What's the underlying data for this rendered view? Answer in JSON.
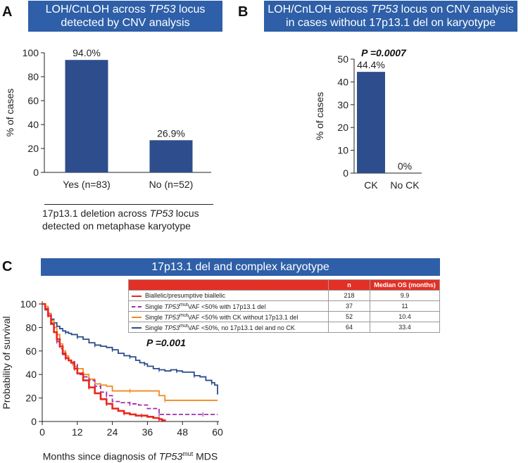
{
  "panel_a": {
    "letter": "A",
    "title_line1_pre": "LOH/CnLOH across ",
    "title_line1_italic": "TP53",
    "title_line1_post": " locus",
    "title_line2": "detected by CNV analysis",
    "caption_line1_pre": "17p13.1 deletion across ",
    "caption_line1_italic": "TP53",
    "caption_line1_post": " locus",
    "caption_line2": "detected on metaphase karyotype"
  },
  "panel_b": {
    "letter": "B",
    "title_line1_pre": "LOH/CnLOH across ",
    "title_line1_italic": "TP53",
    "title_line1_post": " locus on CNV analysis",
    "title_line2": "in cases without 17p13.1 del on karyotype",
    "p_value": "P =0.0007"
  },
  "panel_c": {
    "letter": "C",
    "title": "17p13.1 del and complex karyotype",
    "p_value": "P =0.001",
    "legend_header": {
      "n": "n",
      "median": "Median OS (months)"
    },
    "xlabel_pre": "Months since diagnosis of ",
    "xlabel_italic": "TP53",
    "xlabel_sup": "mut",
    "xlabel_post": " MDS"
  },
  "colors": {
    "bar": "#2e4d8c",
    "banner": "#2e5fa8",
    "red": "#e8281e",
    "purple": "#9c2fa8",
    "orange": "#f28a1f",
    "navy": "#2a4d8c"
  },
  "chart_data": [
    {
      "type": "bar",
      "panel": "A",
      "categories": [
        "Yes (n=83)",
        "No (n=52)"
      ],
      "values": [
        94.0,
        26.9
      ],
      "data_labels": [
        "94.0%",
        "26.9%"
      ],
      "ylabel": "% of cases",
      "ylim": [
        0,
        100
      ],
      "yticks": [
        0,
        20,
        40,
        60,
        80,
        100
      ]
    },
    {
      "type": "bar",
      "panel": "B",
      "categories": [
        "CK",
        "No CK"
      ],
      "values": [
        44.4,
        0
      ],
      "data_labels": [
        "44.4%",
        "0%"
      ],
      "ylabel": "% of cases",
      "ylim": [
        0,
        50
      ],
      "yticks": [
        0,
        10,
        20,
        30,
        40,
        50
      ]
    },
    {
      "type": "line",
      "panel": "C",
      "ylabel": "Probability of survival",
      "xlim": [
        0,
        60
      ],
      "ylim": [
        0,
        100
      ],
      "xticks": [
        0,
        12,
        24,
        36,
        48,
        60
      ],
      "yticks": [
        0,
        20,
        40,
        60,
        80,
        100
      ],
      "series": [
        {
          "name_pre": "Biallelic/presumptive biallelic",
          "name_italic": "",
          "name_sup": "",
          "name_post": "",
          "n": "218",
          "median": "9.9",
          "color_key": "red",
          "dash": false,
          "x": [
            0,
            1,
            2,
            3,
            4,
            5,
            6,
            7,
            8,
            9,
            9.9,
            11,
            12,
            14,
            16,
            18,
            20,
            22,
            24,
            26,
            28,
            30,
            32,
            34,
            36,
            38,
            40,
            41,
            42
          ],
          "y": [
            100,
            96,
            90,
            83,
            76,
            70,
            64,
            58,
            54,
            52,
            50,
            45,
            41,
            35,
            29,
            24,
            19,
            15,
            11,
            9,
            7,
            6,
            5,
            5,
            4,
            3,
            2,
            1,
            0
          ]
        },
        {
          "name_pre": "Single ",
          "name_italic": "TP53",
          "name_sup": "mut",
          "name_post": "VAF <50% with 17p13.1 del",
          "n": "37",
          "median": "11",
          "color_key": "purple",
          "dash": true,
          "x": [
            0,
            1,
            2,
            3,
            4,
            5,
            6,
            7,
            8,
            9,
            10,
            11,
            12,
            14,
            16,
            18,
            20,
            22,
            24,
            27,
            30,
            33,
            36,
            40,
            45,
            50,
            55,
            60
          ],
          "y": [
            100,
            95,
            92,
            84,
            76,
            68,
            62,
            57,
            54,
            52,
            51,
            49,
            40,
            38,
            35,
            30,
            25,
            22,
            17,
            16,
            15,
            14,
            11,
            6,
            6,
            6,
            6,
            6
          ]
        },
        {
          "name_pre": "Single ",
          "name_italic": "TP53",
          "name_sup": "mut",
          "name_post": "VAF <50% with CK without 17p13.1 del",
          "n": "52",
          "median": "10.4",
          "color_key": "orange",
          "dash": false,
          "x": [
            0,
            1,
            2,
            3,
            4,
            5,
            6,
            7,
            8,
            9,
            10,
            10.4,
            11,
            12,
            14,
            16,
            18,
            20,
            22,
            24,
            30,
            36,
            40,
            42,
            48,
            54,
            60
          ],
          "y": [
            100,
            98,
            92,
            86,
            80,
            74,
            66,
            60,
            56,
            52,
            50,
            49,
            47,
            45,
            40,
            36,
            32,
            31,
            30,
            26,
            26,
            26,
            22,
            18,
            18,
            18,
            18
          ]
        },
        {
          "name_pre": "Single ",
          "name_italic": "TP53",
          "name_sup": "mut",
          "name_post": "VAF <50%, no 17p13.1 del and no CK",
          "n": "64",
          "median": "33.4",
          "color_key": "navy",
          "dash": false,
          "x": [
            0,
            1,
            2,
            3,
            4,
            5,
            6,
            7,
            8,
            9,
            10,
            12,
            14,
            16,
            18,
            20,
            22,
            24,
            26,
            28,
            30,
            32,
            33.4,
            35,
            36,
            38,
            40,
            42,
            44,
            46,
            48,
            50,
            52,
            54,
            56,
            58,
            59,
            60
          ],
          "y": [
            100,
            95,
            92,
            87,
            84,
            81,
            79,
            77,
            76,
            75,
            74,
            72,
            70,
            67,
            65,
            64,
            63,
            61,
            58,
            56,
            55,
            52,
            50,
            49,
            47,
            45,
            44,
            43,
            44,
            43,
            42,
            42,
            39,
            38,
            35,
            33,
            31,
            23
          ]
        }
      ],
      "xlabel": "Months since diagnosis of TP53mut MDS"
    }
  ]
}
